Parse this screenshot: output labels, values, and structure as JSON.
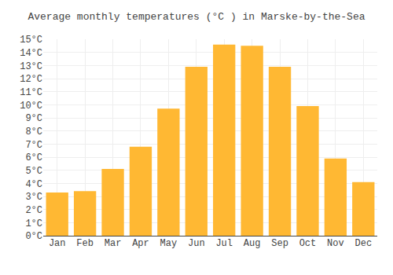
{
  "chart_data": {
    "type": "bar",
    "title": "Average monthly temperatures (°C ) in Marske-by-the-Sea",
    "categories": [
      "Jan",
      "Feb",
      "Mar",
      "Apr",
      "May",
      "Jun",
      "Jul",
      "Aug",
      "Sep",
      "Oct",
      "Nov",
      "Dec"
    ],
    "values": [
      3.3,
      3.4,
      5.1,
      6.8,
      9.7,
      12.9,
      14.6,
      14.5,
      12.9,
      9.9,
      5.9,
      4.1
    ],
    "color": "#FFB833",
    "ylim": [
      0,
      15
    ],
    "yticks": [
      {
        "value": 0,
        "label": "0°C"
      },
      {
        "value": 1,
        "label": "1°C"
      },
      {
        "value": 2,
        "label": "2°C"
      },
      {
        "value": 3,
        "label": "3°C"
      },
      {
        "value": 4,
        "label": "4°C"
      },
      {
        "value": 5,
        "label": "5°C"
      },
      {
        "value": 6,
        "label": "6°C"
      },
      {
        "value": 7,
        "label": "7°C"
      },
      {
        "value": 8,
        "label": "8°C"
      },
      {
        "value": 9,
        "label": "9°C"
      },
      {
        "value": 10,
        "label": "10°C"
      },
      {
        "value": 11,
        "label": "11°C"
      },
      {
        "value": 12,
        "label": "12°C"
      },
      {
        "value": 13,
        "label": "13°C"
      },
      {
        "value": 14,
        "label": "14°C"
      },
      {
        "value": 15,
        "label": "15°C"
      }
    ],
    "grid": true
  }
}
